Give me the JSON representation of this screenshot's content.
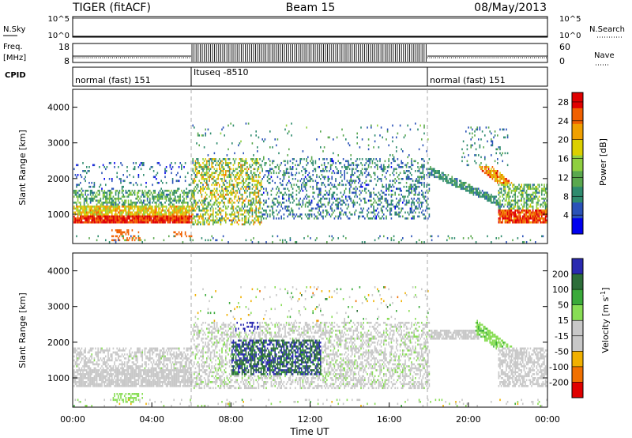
{
  "header": {
    "left": "TIGER (fitACF)",
    "center": "Beam 15",
    "right": "08/May/2013"
  },
  "sky_panel": {
    "label": "N.Sky",
    "ticks_left": [
      "10^5",
      "10^0"
    ],
    "ticks_right": [
      "10^5",
      "10^0"
    ],
    "right_label": "N.Search"
  },
  "freq_panel": {
    "label_top": "Freq.",
    "label_bottom": "[MHz]",
    "ticks_left": [
      "18",
      "8"
    ],
    "ticks_right": [
      "60",
      "0"
    ],
    "right_label": "Nave"
  },
  "cpid_panel": {
    "label": "CPID",
    "segments": [
      "normal (fast) 151",
      "Ituseq -8510",
      "normal (fast) 151"
    ]
  },
  "x_axis": {
    "label": "Time UT",
    "ticks": [
      "00:00",
      "04:00",
      "08:00",
      "12:00",
      "16:00",
      "20:00",
      "00:00"
    ]
  },
  "colors": {
    "power_scale": [
      "#0000ee",
      "#2a52b8",
      "#2e8b6e",
      "#5aa84e",
      "#8fcf40",
      "#dcd000",
      "#f0a000",
      "#f06000",
      "#e00000"
    ],
    "velocity_scale": [
      "#2a2ab0",
      "#2d6e3a",
      "#3aaa3a",
      "#88dd55",
      "#c8c8c8",
      "#c8c8c8",
      "#f0b000",
      "#f07000",
      "#e00000"
    ]
  },
  "chart_data": [
    {
      "type": "heatmap",
      "title": "",
      "xlabel": "Time UT",
      "ylabel": "Slant Range [km]",
      "xlim_hours": [
        0,
        24
      ],
      "ylim": [
        180,
        4500
      ],
      "yticks": [
        "1000",
        "2000",
        "3000",
        "4000"
      ],
      "colorbar": {
        "label": "Power [dB]",
        "ticks": [
          "4",
          "8",
          "12",
          "16",
          "20",
          "24",
          "28"
        ],
        "range": [
          0,
          30
        ]
      },
      "features": [
        {
          "name": "strong near-range band",
          "hours": [
            0,
            6
          ],
          "range_km": [
            800,
            1000
          ],
          "value_db": 26
        },
        {
          "name": "evening band",
          "hours": [
            18,
            21.5
          ],
          "range_km": [
            2100,
            2400
          ],
          "value_db": 8
        },
        {
          "name": "descending trace",
          "hours": [
            21,
            24
          ],
          "range_km": [
            900,
            1700
          ],
          "value_db": 24
        }
      ]
    },
    {
      "type": "heatmap",
      "title": "",
      "xlabel": "Time UT",
      "ylabel": "Slant Range [km]",
      "xlim_hours": [
        0,
        24
      ],
      "ylim": [
        180,
        4500
      ],
      "yticks": [
        "1000",
        "2000",
        "3000",
        "4000"
      ],
      "colorbar": {
        "label": "Velocity [m s^-1]",
        "ticks": [
          "200",
          "100",
          "50",
          "15",
          "-15",
          "-50",
          "-100",
          "-200"
        ],
        "range": [
          -250,
          250
        ]
      },
      "features": [
        {
          "name": "ground scatter",
          "hours": [
            0,
            6
          ],
          "range_km": [
            800,
            1200
          ],
          "value_ms": 0
        },
        {
          "name": "positive velocity patch",
          "hours": [
            8,
            12
          ],
          "range_km": [
            1200,
            2200
          ],
          "value_ms": 200
        },
        {
          "name": "evening ground scatter",
          "hours": [
            18,
            20
          ],
          "range_km": [
            2100,
            2400
          ],
          "value_ms": -30
        }
      ]
    }
  ]
}
